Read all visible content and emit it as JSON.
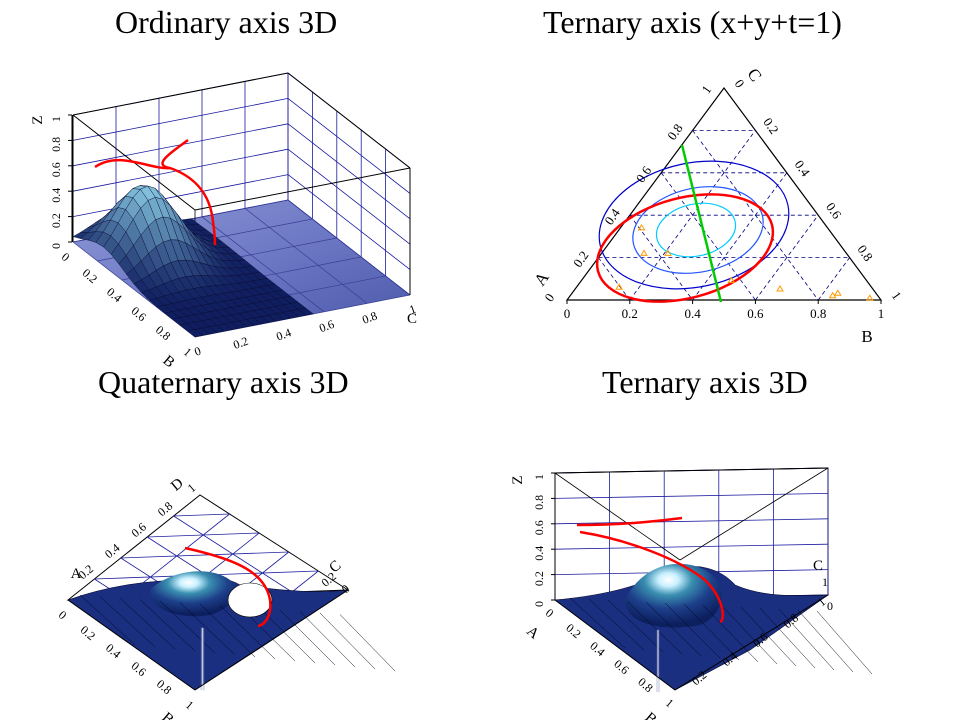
{
  "panels": [
    {
      "title": "Ordinary axis 3D",
      "chart_data": {
        "type": "surface3d",
        "axes": {
          "z": {
            "label": "Z",
            "ticks": [
              "0",
              "0.2",
              "0.4",
              "0.6",
              "0.8",
              "1"
            ],
            "range": [
              0,
              1
            ]
          },
          "b": {
            "label": "B",
            "ticks": [
              "0",
              "0.2",
              "0.4",
              "0.6",
              "0.8",
              "1"
            ],
            "range": [
              0,
              1
            ]
          },
          "c": {
            "label": "C",
            "ticks": [
              "0",
              "0.2",
              "0.4",
              "0.6",
              "0.8",
              "1"
            ],
            "range": [
              0,
              1
            ]
          }
        },
        "surface_peak": {
          "b": 0.25,
          "c": 0.2,
          "z": 0.56
        },
        "curve": {
          "color": "#ff0000"
        }
      }
    },
    {
      "title": "Ternary axis (x+y+t=1)",
      "chart_data": {
        "type": "ternary",
        "axes": {
          "a": {
            "label": "A",
            "ticks": [
              "0",
              "0.2",
              "0.4",
              "0.6",
              "0.8",
              "1"
            ]
          },
          "b": {
            "label": "B",
            "ticks": [
              "0",
              "0.2",
              "0.4",
              "0.6",
              "0.8",
              "1"
            ]
          },
          "c": {
            "label": "C",
            "ticks": [
              "0",
              "0.2",
              "0.4",
              "0.6",
              "0.8",
              "1"
            ]
          }
        },
        "contour_colors": [
          "#0000cc",
          "#2255ff",
          "#00ccff"
        ],
        "ellipse_color": "#ff0000",
        "line_color": "#00cc00",
        "marker_color": "#ff9900",
        "markers": [
          {
            "b": 0.45,
            "c": 0.85
          },
          {
            "b": 0.47,
            "c": 0.55
          },
          {
            "b": 0.62,
            "c": 0.23
          },
          {
            "b": 0.75,
            "c": 0.13
          },
          {
            "b": 0.88,
            "c": 0.05
          },
          {
            "b": 0.92,
            "c": 0.08
          },
          {
            "b": 0.98,
            "c": 0.02
          },
          {
            "b": 0.16,
            "c": 0.15
          },
          {
            "b": 0.3,
            "c": 0.55
          }
        ]
      }
    },
    {
      "title": "Quaternary axis 3D",
      "chart_data": {
        "type": "surface3d-quaternary",
        "axes": {
          "a": {
            "label": "A",
            "ticks": [
              "0",
              "0.2",
              "0.4",
              "0.6",
              "0.8",
              "1"
            ]
          },
          "b": {
            "label": "B",
            "ticks": [
              "0",
              "0.2",
              "0.4",
              "0.6",
              "0.8",
              "1"
            ]
          },
          "c": {
            "label": "C",
            "ticks": [
              "0",
              "0.2"
            ]
          },
          "d": {
            "label": "D",
            "ticks": [
              "0.2",
              "0.4",
              "0.6",
              "0.8",
              "1"
            ]
          }
        }
      }
    },
    {
      "title": "Ternary axis 3D",
      "chart_data": {
        "type": "surface3d-ternary",
        "axes": {
          "z": {
            "label": "Z",
            "ticks": [
              "0",
              "0.2",
              "0.4",
              "0.6",
              "0.8",
              "1"
            ]
          },
          "a": {
            "label": "A",
            "ticks": [
              "0",
              "0.2",
              "0.4",
              "0.6",
              "0.8",
              "1"
            ]
          },
          "b": {
            "label": "B",
            "ticks": [
              "0.2",
              "0.4",
              "0.6",
              "0.8",
              "1"
            ]
          },
          "c": {
            "label": "C",
            "ticks": [
              "0",
              "1"
            ]
          }
        }
      }
    }
  ]
}
